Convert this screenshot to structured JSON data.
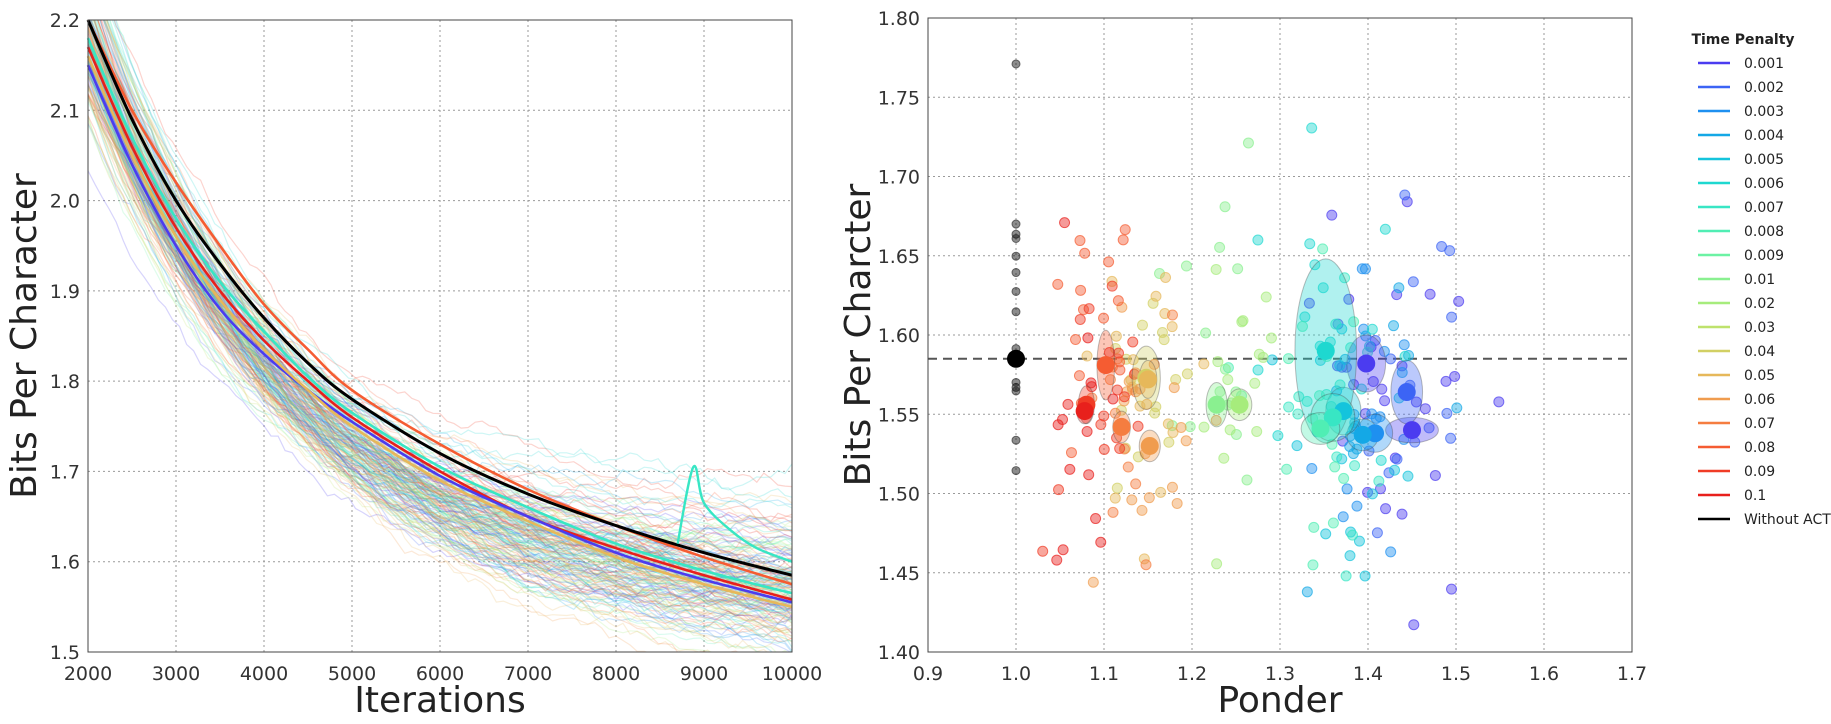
{
  "palette": {
    "0.001": "#4b3cf0",
    "0.002": "#3c64f5",
    "0.003": "#1e90f0",
    "0.004": "#14a8e6",
    "0.005": "#14c4dc",
    "0.006": "#1ed8d0",
    "0.007": "#38e6c4",
    "0.008": "#50eeb4",
    "0.009": "#6cf2a4",
    "0.01": "#8af090",
    "0.02": "#a6ec7c",
    "0.03": "#bee26c",
    "0.04": "#d2d064",
    "0.05": "#e6b85a",
    "0.06": "#f09c4e",
    "0.07": "#f57d40",
    "0.08": "#f55c32",
    "0.09": "#f03c26",
    "0.1": "#e8201c",
    "Without ACT": "#000000"
  },
  "chart_data": [
    {
      "type": "line",
      "title": "",
      "xlabel": "Iterations",
      "ylabel": "Bits Per Character",
      "xlim": [
        2000,
        10000
      ],
      "ylim": [
        1.5,
        2.2
      ],
      "xticks": [
        "2000",
        "3000",
        "4000",
        "5000",
        "6000",
        "7000",
        "8000",
        "9000",
        "10000"
      ],
      "yticks": [
        "1.5",
        "1.6",
        "1.7",
        "1.8",
        "1.9",
        "2.0",
        "2.1",
        "2.2"
      ],
      "grid": true,
      "x": [
        2000,
        2500,
        3000,
        3500,
        4000,
        4500,
        5000,
        6000,
        7000,
        8000,
        9000,
        10000
      ],
      "series": [
        {
          "name": "Without ACT",
          "values": [
            2.2,
            2.09,
            2.0,
            1.93,
            1.87,
            1.82,
            1.78,
            1.72,
            1.675,
            1.64,
            1.61,
            1.585
          ]
        },
        {
          "name": "0.08",
          "values": [
            2.2,
            2.1,
            2.02,
            1.95,
            1.885,
            1.835,
            1.79,
            1.73,
            1.68,
            1.64,
            1.605,
            1.575
          ]
        },
        {
          "name": "0.1",
          "values": [
            2.17,
            2.06,
            1.97,
            1.9,
            1.845,
            1.8,
            1.76,
            1.7,
            1.65,
            1.615,
            1.585,
            1.558
          ]
        },
        {
          "name": "0.001",
          "values": [
            2.15,
            2.04,
            1.95,
            1.88,
            1.83,
            1.79,
            1.755,
            1.695,
            1.65,
            1.61,
            1.58,
            1.555
          ]
        },
        {
          "name": "0.007",
          "values": [
            2.18,
            2.07,
            1.98,
            1.91,
            1.855,
            1.805,
            1.765,
            1.705,
            1.66,
            1.62,
            1.59,
            1.565
          ]
        },
        {
          "name": "0.05",
          "values": [
            2.16,
            2.05,
            1.96,
            1.89,
            1.835,
            1.79,
            1.75,
            1.69,
            1.645,
            1.605,
            1.575,
            1.55
          ]
        }
      ],
      "annotations": [
        {
          "name": "spike",
          "x": [
            8700,
            8880,
            9000,
            9300,
            9600,
            10000
          ],
          "values": [
            1.62,
            1.705,
            1.665,
            1.635,
            1.615,
            1.6
          ]
        }
      ]
    },
    {
      "type": "scatter",
      "title": "",
      "xlabel": "Ponder",
      "ylabel": "Bits Per Charcter",
      "xlim": [
        0.9,
        1.7
      ],
      "ylim": [
        1.4,
        1.8
      ],
      "xticks": [
        "0.9",
        "1.0",
        "1.1",
        "1.2",
        "1.3",
        "1.4",
        "1.5",
        "1.6",
        "1.7"
      ],
      "yticks": [
        "1.40",
        "1.45",
        "1.50",
        "1.55",
        "1.60",
        "1.65",
        "1.70",
        "1.75",
        "1.80"
      ],
      "grid": true,
      "reference_line": {
        "y": 1.585,
        "style": "dashed"
      },
      "means": [
        {
          "penalty": "Without ACT",
          "x": 1.0,
          "y": 1.585,
          "sx": 0.004,
          "sy": 0.02
        },
        {
          "penalty": "0.001",
          "x": 1.45,
          "y": 1.54,
          "sx": 0.03,
          "sy": 0.008
        },
        {
          "penalty": "0.001",
          "x": 1.398,
          "y": 1.582,
          "sx": 0.022,
          "sy": 0.018
        },
        {
          "penalty": "0.002",
          "x": 1.444,
          "y": 1.564,
          "sx": 0.018,
          "sy": 0.02
        },
        {
          "penalty": "0.003",
          "x": 1.408,
          "y": 1.538,
          "sx": 0.02,
          "sy": 0.012
        },
        {
          "penalty": "0.004",
          "x": 1.394,
          "y": 1.537,
          "sx": 0.018,
          "sy": 0.01
        },
        {
          "penalty": "0.005",
          "x": 1.372,
          "y": 1.552,
          "sx": 0.02,
          "sy": 0.015
        },
        {
          "penalty": "0.006",
          "x": 1.352,
          "y": 1.59,
          "sx": 0.035,
          "sy": 0.058
        },
        {
          "penalty": "0.007",
          "x": 1.36,
          "y": 1.548,
          "sx": 0.025,
          "sy": 0.015
        },
        {
          "penalty": "0.008",
          "x": 1.346,
          "y": 1.541,
          "sx": 0.022,
          "sy": 0.01
        },
        {
          "penalty": "0.01",
          "x": 1.228,
          "y": 1.556,
          "sx": 0.012,
          "sy": 0.014
        },
        {
          "penalty": "0.02",
          "x": 1.254,
          "y": 1.556,
          "sx": 0.014,
          "sy": 0.01
        },
        {
          "penalty": "0.04",
          "x": 1.148,
          "y": 1.573,
          "sx": 0.016,
          "sy": 0.02
        },
        {
          "penalty": "0.05",
          "x": 1.15,
          "y": 1.572,
          "sx": 0.01,
          "sy": 0.012
        },
        {
          "penalty": "0.06",
          "x": 1.152,
          "y": 1.53,
          "sx": 0.012,
          "sy": 0.01
        },
        {
          "penalty": "0.07",
          "x": 1.12,
          "y": 1.542,
          "sx": 0.01,
          "sy": 0.01
        },
        {
          "penalty": "0.08",
          "x": 1.102,
          "y": 1.581,
          "sx": 0.01,
          "sy": 0.022
        },
        {
          "penalty": "0.09",
          "x": 1.08,
          "y": 1.556,
          "sx": 0.008,
          "sy": 0.012
        },
        {
          "penalty": "0.1",
          "x": 1.078,
          "y": 1.552,
          "sx": 0.006,
          "sy": 0.008
        }
      ],
      "runs_note": "individual runs scattered around each penalty mean"
    }
  ],
  "legend": {
    "title": "Time Penalty",
    "entries": [
      "0.001",
      "0.002",
      "0.003",
      "0.004",
      "0.005",
      "0.006",
      "0.007",
      "0.008",
      "0.009",
      "0.01",
      "0.02",
      "0.03",
      "0.04",
      "0.05",
      "0.06",
      "0.07",
      "0.08",
      "0.09",
      "0.1",
      "Without ACT"
    ]
  }
}
